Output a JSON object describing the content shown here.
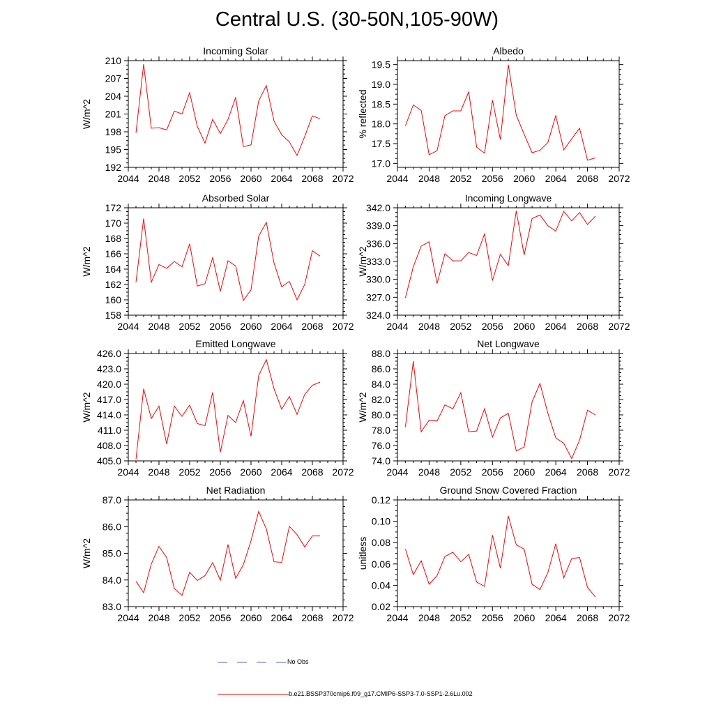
{
  "figure": {
    "title": "Central U.S. (30-50N,105-90W)"
  },
  "legend": [
    {
      "label": "No Obs",
      "color": "#5b5bd6",
      "dash": "dashed"
    },
    {
      "label": "b.e21.BSSP370cmip6.f09_g17.CMIP6-SSP3-7.0-SSP1-2.6Lu.002",
      "color": "#ff0000",
      "dash": "solid"
    }
  ],
  "chart_data": [
    {
      "type": "line",
      "title": "Incoming Solar",
      "ylabel": "W/m^2",
      "xlim": [
        2044,
        2072
      ],
      "ylim": [
        192,
        210
      ],
      "xticks": [
        2044,
        2048,
        2052,
        2056,
        2060,
        2064,
        2068,
        2072
      ],
      "yticks": [
        192,
        195,
        198,
        201,
        204,
        207,
        210
      ],
      "tick_labels": [
        "192",
        "195",
        "198",
        "201",
        "204",
        "207",
        "210"
      ],
      "series": [
        {
          "color": "#ff0000",
          "x": [
            2045,
            2046,
            2047,
            2048,
            2049,
            2050,
            2051,
            2052,
            2053,
            2054,
            2055,
            2056,
            2057,
            2058,
            2059,
            2060,
            2061,
            2062,
            2063,
            2064,
            2065,
            2066,
            2067,
            2068,
            2069
          ],
          "values": [
            197.8,
            209.4,
            198.6,
            198.7,
            198.3,
            201.5,
            201.0,
            204.6,
            198.9,
            196.1,
            200.1,
            197.7,
            200.1,
            203.8,
            195.5,
            195.8,
            203.2,
            205.8,
            199.8,
            197.5,
            196.3,
            194.0,
            197.2,
            200.7,
            200.2
          ]
        }
      ]
    },
    {
      "type": "line",
      "title": "Albedo",
      "ylabel": "% reflected",
      "xlim": [
        2044,
        2072
      ],
      "ylim": [
        16.9,
        19.6
      ],
      "xticks": [
        2044,
        2048,
        2052,
        2056,
        2060,
        2064,
        2068,
        2072
      ],
      "yticks": [
        17.0,
        17.5,
        18.0,
        18.5,
        19.0,
        19.5
      ],
      "tick_labels": [
        "17.0",
        "17.5",
        "18.0",
        "18.5",
        "19.0",
        "19.5"
      ],
      "series": [
        {
          "color": "#ff0000",
          "x": [
            2045,
            2046,
            2047,
            2048,
            2049,
            2050,
            2051,
            2052,
            2053,
            2054,
            2055,
            2056,
            2057,
            2058,
            2059,
            2060,
            2061,
            2062,
            2063,
            2064,
            2065,
            2066,
            2067,
            2068,
            2069
          ],
          "values": [
            17.95,
            18.48,
            18.34,
            17.22,
            17.32,
            18.21,
            18.33,
            18.33,
            18.81,
            17.41,
            17.26,
            18.6,
            17.6,
            19.5,
            18.22,
            17.74,
            17.27,
            17.33,
            17.53,
            18.21,
            17.34,
            17.62,
            17.89,
            17.08,
            17.14
          ]
        }
      ]
    },
    {
      "type": "line",
      "title": "Absorbed Solar",
      "ylabel": "W/m^2",
      "xlim": [
        2044,
        2072
      ],
      "ylim": [
        158,
        172
      ],
      "xticks": [
        2044,
        2048,
        2052,
        2056,
        2060,
        2064,
        2068,
        2072
      ],
      "yticks": [
        158,
        160,
        162,
        164,
        166,
        168,
        170,
        172
      ],
      "tick_labels": [
        "158",
        "160",
        "162",
        "164",
        "166",
        "168",
        "170",
        "172"
      ],
      "series": [
        {
          "color": "#ff0000",
          "x": [
            2045,
            2046,
            2047,
            2048,
            2049,
            2050,
            2051,
            2052,
            2053,
            2054,
            2055,
            2056,
            2057,
            2058,
            2059,
            2060,
            2061,
            2062,
            2063,
            2064,
            2065,
            2066,
            2067,
            2068,
            2069
          ],
          "values": [
            162.3,
            170.6,
            162.3,
            164.6,
            164.1,
            165.0,
            164.3,
            167.3,
            161.8,
            162.1,
            165.5,
            161.1,
            165.1,
            164.4,
            159.9,
            161.3,
            168.3,
            170.1,
            164.8,
            161.7,
            162.4,
            160.0,
            162.0,
            166.4,
            165.7
          ]
        }
      ]
    },
    {
      "type": "line",
      "title": "Incoming Longwave",
      "ylabel": "W/m^2",
      "xlim": [
        2044,
        2072
      ],
      "ylim": [
        324,
        342
      ],
      "xticks": [
        2044,
        2048,
        2052,
        2056,
        2060,
        2064,
        2068,
        2072
      ],
      "yticks": [
        324,
        327,
        330,
        333,
        336,
        339,
        342
      ],
      "tick_labels": [
        "324.0",
        "327.0",
        "330.0",
        "333.0",
        "336.0",
        "339.0",
        "342.0"
      ],
      "series": [
        {
          "color": "#ff0000",
          "x": [
            2045,
            2046,
            2047,
            2048,
            2049,
            2050,
            2051,
            2052,
            2053,
            2054,
            2055,
            2056,
            2057,
            2058,
            2059,
            2060,
            2061,
            2062,
            2063,
            2064,
            2065,
            2066,
            2067,
            2068,
            2069
          ],
          "values": [
            326.9,
            332.1,
            335.6,
            336.3,
            329.3,
            334.3,
            333.1,
            333.1,
            334.5,
            334.0,
            337.6,
            329.8,
            334.2,
            332.3,
            341.5,
            334.1,
            340.2,
            340.8,
            339.0,
            338.1,
            341.4,
            339.8,
            341.2,
            339.2,
            340.6
          ]
        }
      ]
    },
    {
      "type": "line",
      "title": "Emitted Longwave",
      "ylabel": "W/m^2",
      "xlim": [
        2044,
        2072
      ],
      "ylim": [
        405,
        426
      ],
      "xticks": [
        2044,
        2048,
        2052,
        2056,
        2060,
        2064,
        2068,
        2072
      ],
      "yticks": [
        405,
        408,
        411,
        414,
        417,
        420,
        423,
        426
      ],
      "tick_labels": [
        "405.0",
        "408.0",
        "411.0",
        "414.0",
        "417.0",
        "420.0",
        "423.0",
        "426.0"
      ],
      "series": [
        {
          "color": "#ff0000",
          "x": [
            2045,
            2046,
            2047,
            2048,
            2049,
            2050,
            2051,
            2052,
            2053,
            2054,
            2055,
            2056,
            2057,
            2058,
            2059,
            2060,
            2061,
            2062,
            2063,
            2064,
            2065,
            2066,
            2067,
            2068,
            2069
          ],
          "values": [
            405.3,
            419.1,
            413.3,
            415.7,
            408.3,
            415.7,
            413.7,
            415.9,
            412.3,
            411.9,
            418.4,
            406.7,
            413.9,
            412.5,
            416.8,
            409.8,
            421.7,
            424.8,
            419.1,
            415.1,
            417.6,
            414.1,
            418.0,
            419.8,
            420.4
          ]
        }
      ]
    },
    {
      "type": "line",
      "title": "Net Longwave",
      "ylabel": "W/m^2",
      "xlim": [
        2044,
        2072
      ],
      "ylim": [
        74,
        88
      ],
      "xticks": [
        2044,
        2048,
        2052,
        2056,
        2060,
        2064,
        2068,
        2072
      ],
      "yticks": [
        74,
        76,
        78,
        80,
        82,
        84,
        86,
        88
      ],
      "tick_labels": [
        "74.0",
        "76.0",
        "78.0",
        "80.0",
        "82.0",
        "84.0",
        "86.0",
        "88.0"
      ],
      "series": [
        {
          "color": "#ff0000",
          "x": [
            2045,
            2046,
            2047,
            2048,
            2049,
            2050,
            2051,
            2052,
            2053,
            2054,
            2055,
            2056,
            2057,
            2058,
            2059,
            2060,
            2061,
            2062,
            2063,
            2064,
            2065,
            2066,
            2067,
            2068,
            2069
          ],
          "values": [
            78.4,
            87.0,
            77.8,
            79.3,
            79.2,
            81.3,
            80.8,
            82.9,
            77.8,
            77.9,
            80.8,
            77.1,
            79.6,
            80.2,
            75.3,
            75.8,
            81.7,
            84.1,
            80.2,
            77.0,
            76.3,
            74.3,
            76.7,
            80.6,
            80.0
          ]
        }
      ]
    },
    {
      "type": "line",
      "title": "Net Radiation",
      "ylabel": "W/m^2",
      "xlim": [
        2044,
        2072
      ],
      "ylim": [
        83,
        87
      ],
      "xticks": [
        2044,
        2048,
        2052,
        2056,
        2060,
        2064,
        2068,
        2072
      ],
      "yticks": [
        83,
        84,
        85,
        86,
        87
      ],
      "tick_labels": [
        "83.0",
        "84.0",
        "85.0",
        "86.0",
        "87.0"
      ],
      "series": [
        {
          "color": "#ff0000",
          "x": [
            2045,
            2046,
            2047,
            2048,
            2049,
            2050,
            2051,
            2052,
            2053,
            2054,
            2055,
            2056,
            2057,
            2058,
            2059,
            2060,
            2061,
            2062,
            2063,
            2064,
            2065,
            2066,
            2067,
            2068,
            2069
          ],
          "values": [
            83.95,
            83.52,
            84.6,
            85.26,
            84.84,
            83.68,
            83.42,
            84.29,
            83.98,
            84.16,
            84.65,
            83.99,
            85.33,
            84.06,
            84.57,
            85.47,
            86.57,
            85.91,
            84.68,
            84.66,
            86.01,
            85.7,
            85.24,
            85.65,
            85.65
          ]
        }
      ]
    },
    {
      "type": "line",
      "title": "Ground Snow Covered Fraction",
      "ylabel": "unitless",
      "xlim": [
        2044,
        2072
      ],
      "ylim": [
        0.02,
        0.12
      ],
      "xticks": [
        2044,
        2048,
        2052,
        2056,
        2060,
        2064,
        2068,
        2072
      ],
      "yticks": [
        0.02,
        0.04,
        0.06,
        0.08,
        0.1,
        0.12
      ],
      "tick_labels": [
        "0.02",
        "0.04",
        "0.06",
        "0.08",
        "0.10",
        "0.12"
      ],
      "series": [
        {
          "color": "#ff0000",
          "x": [
            2045,
            2046,
            2047,
            2048,
            2049,
            2050,
            2051,
            2052,
            2053,
            2054,
            2055,
            2056,
            2057,
            2058,
            2059,
            2060,
            2061,
            2062,
            2063,
            2064,
            2065,
            2066,
            2067,
            2068,
            2069
          ],
          "values": [
            0.074,
            0.05,
            0.063,
            0.041,
            0.049,
            0.067,
            0.071,
            0.062,
            0.069,
            0.043,
            0.039,
            0.087,
            0.056,
            0.105,
            0.078,
            0.074,
            0.041,
            0.036,
            0.052,
            0.079,
            0.047,
            0.065,
            0.066,
            0.038,
            0.029
          ]
        }
      ]
    }
  ]
}
